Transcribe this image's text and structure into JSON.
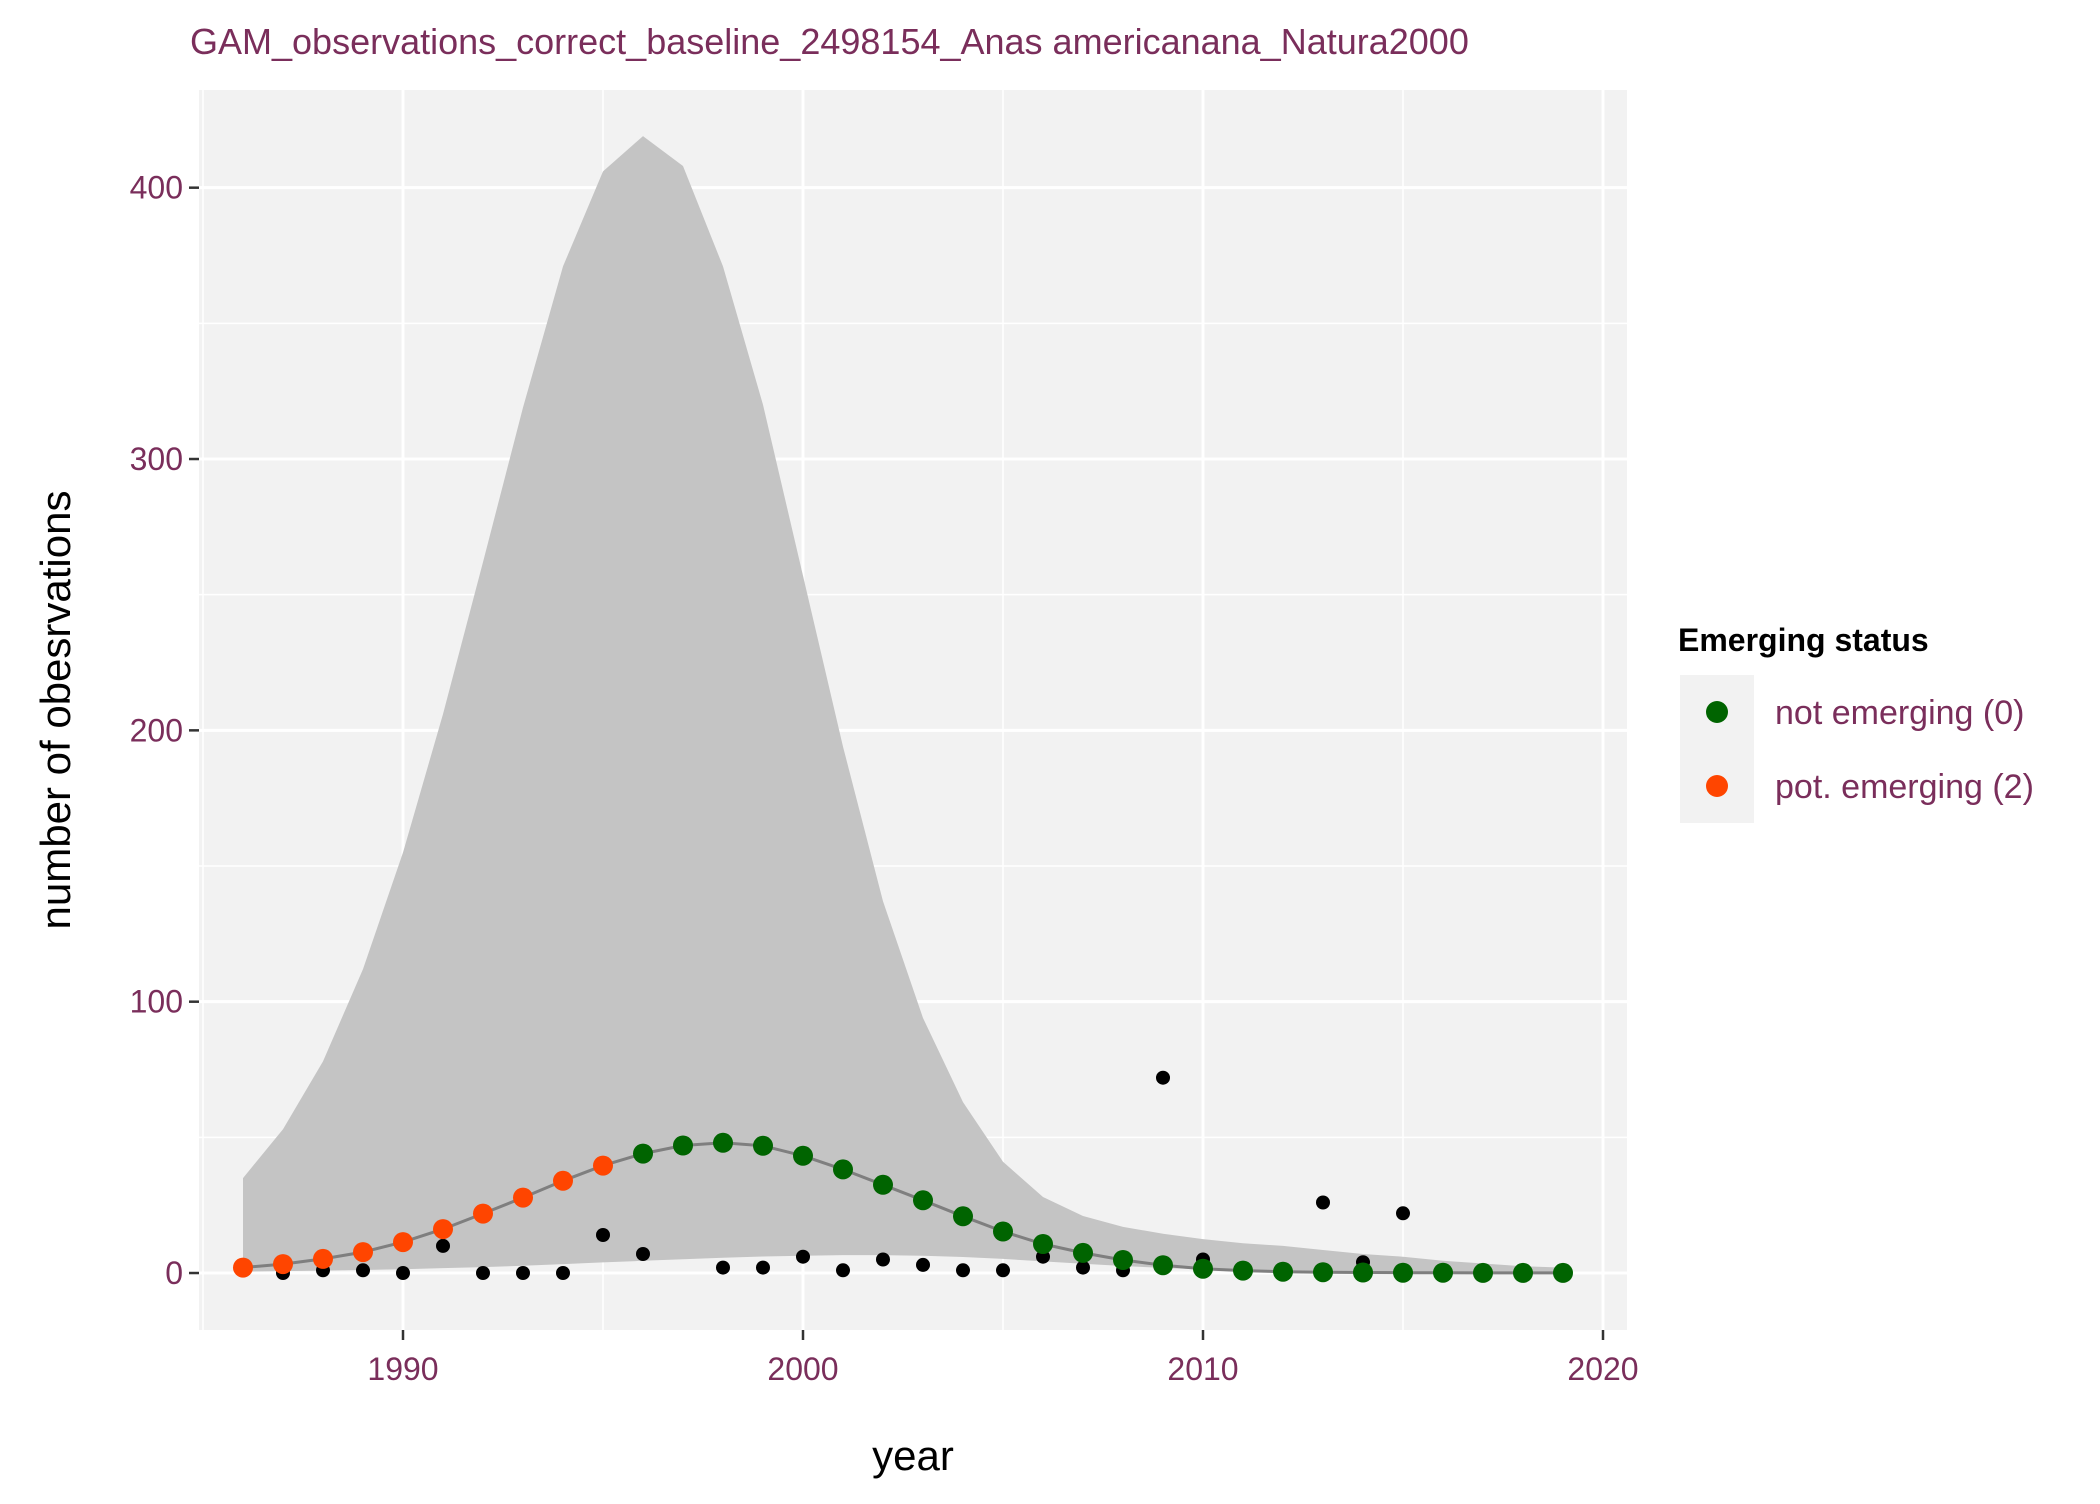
{
  "chart_data": {
    "type": "scatter",
    "title": "GAM_observations_correct_baseline_2498154_Anas americanana_Natura2000",
    "xlabel": "year",
    "ylabel": "number of obesrvations",
    "xlim": [
      1984.9,
      2020.6
    ],
    "ylim": [
      -21,
      436
    ],
    "x_ticks": [
      1990,
      2000,
      2010,
      2020
    ],
    "x_tick_labels": [
      "1990",
      "2000",
      "2010",
      "2020"
    ],
    "y_ticks": [
      0,
      100,
      200,
      300,
      400
    ],
    "y_tick_labels": [
      "0",
      "100",
      "200",
      "300",
      "400"
    ],
    "grid": true,
    "legend_position": "right",
    "legend": {
      "title": "Emerging status",
      "items": [
        {
          "label": "not emerging (0)",
          "color": "#006400"
        },
        {
          "label": "pot. emerging (2)",
          "color": "#FF4500"
        }
      ]
    },
    "colors": {
      "title": "#7A2E5B",
      "tick_label": "#7A2E5B",
      "legend_label": "#7A2E5B",
      "panel": "#F2F2F2",
      "grid": "#FFFFFF",
      "ribbon": "#C4C4C4",
      "fit_line": "#7F7F7F",
      "observed": "#000000",
      "not_emerging": "#006400",
      "pot_emerging": "#FF4500"
    },
    "ribbon": {
      "x": [
        1986,
        1987,
        1988,
        1989,
        1990,
        1991,
        1992,
        1993,
        1994,
        1995,
        1996,
        1997,
        1998,
        1999,
        2000,
        2001,
        2002,
        2003,
        2004,
        2005,
        2006,
        2007,
        2008,
        2009,
        2010,
        2011,
        2012,
        2013,
        2014,
        2015,
        2016,
        2017,
        2018,
        2019
      ],
      "lower": [
        0.5,
        0.7,
        0.9,
        1.1,
        1.4,
        1.8,
        2.2,
        2.7,
        3.3,
        3.9,
        4.5,
        5.1,
        5.6,
        6.1,
        6.4,
        6.6,
        6.6,
        6.4,
        5.9,
        5.2,
        4.3,
        3.4,
        2.6,
        1.9,
        1.3,
        0.9,
        0.6,
        0.4,
        0.3,
        0.2,
        0.1,
        0.1,
        0.05,
        0.05
      ],
      "upper": [
        35,
        53,
        78,
        112,
        155,
        206,
        262,
        319,
        371,
        406,
        419,
        408,
        371,
        320,
        257,
        194,
        137,
        94,
        63,
        41,
        28,
        21,
        17,
        14.5,
        12.5,
        11,
        10,
        8.5,
        7,
        6,
        4.5,
        3.5,
        2.5,
        2
      ]
    },
    "series": [
      {
        "name": "fitted",
        "x": [
          1986,
          1987,
          1988,
          1989,
          1990,
          1991,
          1992,
          1993,
          1994,
          1995,
          1996,
          1997,
          1998,
          1999,
          2000,
          2001,
          2002,
          2003,
          2004,
          2005,
          2006,
          2007,
          2008,
          2009,
          2010,
          2011,
          2012,
          2013,
          2014,
          2015,
          2016,
          2017,
          2018,
          2019
        ],
        "y": [
          2,
          3.3,
          5.2,
          7.7,
          11.4,
          16.2,
          21.9,
          27.8,
          34,
          39.6,
          44,
          47,
          48,
          46.9,
          43.2,
          38.2,
          32.5,
          26.8,
          20.9,
          15.3,
          10.7,
          7.4,
          4.8,
          2.9,
          1.6,
          0.9,
          0.5,
          0.3,
          0.2,
          0.1,
          0.1,
          0.05,
          0.05,
          0.03
        ],
        "status": [
          2,
          2,
          2,
          2,
          2,
          2,
          2,
          2,
          2,
          2,
          0,
          0,
          0,
          0,
          0,
          0,
          0,
          0,
          0,
          0,
          0,
          0,
          0,
          0,
          0,
          0,
          0,
          0,
          0,
          0,
          0,
          0,
          0,
          0
        ]
      },
      {
        "name": "observed",
        "x": [
          1986,
          1987,
          1988,
          1989,
          1990,
          1991,
          1992,
          1993,
          1994,
          1995,
          1996,
          1998,
          1999,
          2000,
          2001,
          2002,
          2003,
          2004,
          2005,
          2006,
          2007,
          2008,
          2009,
          2010,
          2013,
          2014,
          2015
        ],
        "y": [
          1,
          0,
          1,
          1,
          0,
          10,
          0,
          0,
          0,
          14,
          7,
          2,
          2,
          6,
          1,
          5,
          3,
          1,
          1,
          6,
          2,
          1,
          72,
          5,
          26,
          4,
          22
        ]
      }
    ]
  }
}
